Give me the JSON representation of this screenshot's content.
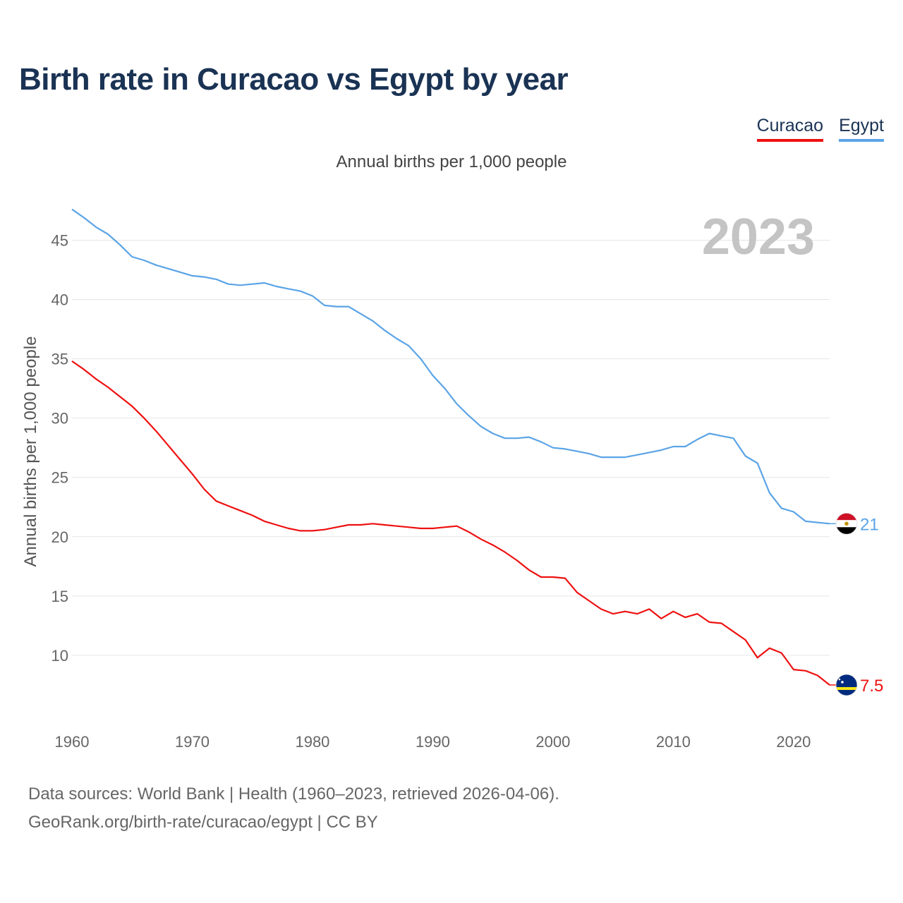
{
  "header": {
    "title": "Birth rate in Curacao vs Egypt by year",
    "subtitle": "Annual births per 1,000 people"
  },
  "legend": [
    {
      "name": "Curacao",
      "color": "#ee1111"
    },
    {
      "name": "Egypt",
      "color": "#5ba4e6"
    }
  ],
  "year_watermark": "2023",
  "chart_data": {
    "type": "line",
    "title": "Birth rate in Curacao vs Egypt by year",
    "ylabel": "Annual births per 1,000 people",
    "xlabel": "",
    "xlim": [
      1960,
      2023
    ],
    "ylim": [
      5,
      48
    ],
    "x_ticks": [
      1960,
      1970,
      1980,
      1990,
      2000,
      2010,
      2020
    ],
    "y_ticks": [
      10,
      15,
      20,
      25,
      30,
      35,
      40,
      45
    ],
    "grid": true,
    "series": [
      {
        "name": "Curacao",
        "color": "#ee1111",
        "end_label": "7.5",
        "x": [
          1960,
          1961,
          1962,
          1963,
          1964,
          1965,
          1966,
          1967,
          1968,
          1969,
          1970,
          1971,
          1972,
          1973,
          1974,
          1975,
          1976,
          1977,
          1978,
          1979,
          1980,
          1981,
          1982,
          1983,
          1984,
          1985,
          1986,
          1987,
          1988,
          1989,
          1990,
          1991,
          1992,
          1993,
          1994,
          1995,
          1996,
          1997,
          1998,
          1999,
          2000,
          2001,
          2002,
          2003,
          2004,
          2005,
          2006,
          2007,
          2008,
          2009,
          2010,
          2011,
          2012,
          2013,
          2014,
          2015,
          2016,
          2017,
          2018,
          2019,
          2020,
          2021,
          2022,
          2023
        ],
        "values": [
          34.8,
          34.1,
          33.3,
          32.6,
          31.8,
          31.0,
          30.0,
          28.9,
          27.7,
          26.5,
          25.3,
          24.0,
          23.0,
          22.6,
          22.2,
          21.8,
          21.3,
          21.0,
          20.7,
          20.5,
          20.5,
          20.6,
          20.8,
          21.0,
          21.0,
          21.1,
          21.0,
          20.9,
          20.8,
          20.7,
          20.7,
          20.8,
          20.9,
          20.4,
          19.8,
          19.3,
          18.7,
          18.0,
          17.2,
          16.6,
          16.6,
          16.5,
          15.3,
          14.6,
          13.9,
          13.5,
          13.7,
          13.5,
          13.9,
          13.1,
          13.7,
          13.2,
          13.5,
          12.8,
          12.7,
          12.0,
          11.3,
          9.8,
          10.6,
          10.2,
          8.8,
          8.7,
          8.3,
          7.5
        ]
      },
      {
        "name": "Egypt",
        "color": "#5ba4e6",
        "end_label": "21",
        "x": [
          1960,
          1961,
          1962,
          1963,
          1964,
          1965,
          1966,
          1967,
          1968,
          1969,
          1970,
          1971,
          1972,
          1973,
          1974,
          1975,
          1976,
          1977,
          1978,
          1979,
          1980,
          1981,
          1982,
          1983,
          1984,
          1985,
          1986,
          1987,
          1988,
          1989,
          1990,
          1991,
          1992,
          1993,
          1994,
          1995,
          1996,
          1997,
          1998,
          1999,
          2000,
          2001,
          2002,
          2003,
          2004,
          2005,
          2006,
          2007,
          2008,
          2009,
          2010,
          2011,
          2012,
          2013,
          2014,
          2015,
          2016,
          2017,
          2018,
          2019,
          2020,
          2021,
          2022,
          2023
        ],
        "values": [
          47.6,
          46.9,
          46.1,
          45.5,
          44.6,
          43.6,
          43.3,
          42.9,
          42.6,
          42.3,
          42.0,
          41.9,
          41.7,
          41.3,
          41.2,
          41.3,
          41.4,
          41.1,
          40.9,
          40.7,
          40.3,
          39.5,
          39.4,
          39.4,
          38.8,
          38.2,
          37.4,
          36.7,
          36.1,
          35.0,
          33.6,
          32.5,
          31.2,
          30.2,
          29.3,
          28.7,
          28.3,
          28.3,
          28.4,
          28.0,
          27.5,
          27.4,
          27.2,
          27.0,
          26.7,
          26.7,
          26.7,
          26.9,
          27.1,
          27.3,
          27.6,
          27.6,
          28.2,
          28.7,
          28.5,
          28.3,
          26.8,
          26.2,
          23.7,
          22.4,
          22.1,
          21.3,
          21.2,
          21.1
        ]
      }
    ]
  },
  "footer": {
    "source_line": "Data sources: World Bank | Health (1960–2023, retrieved 2026-04-06).",
    "credit_line": "GeoRank.org/birth-rate/curacao/egypt | CC BY"
  }
}
